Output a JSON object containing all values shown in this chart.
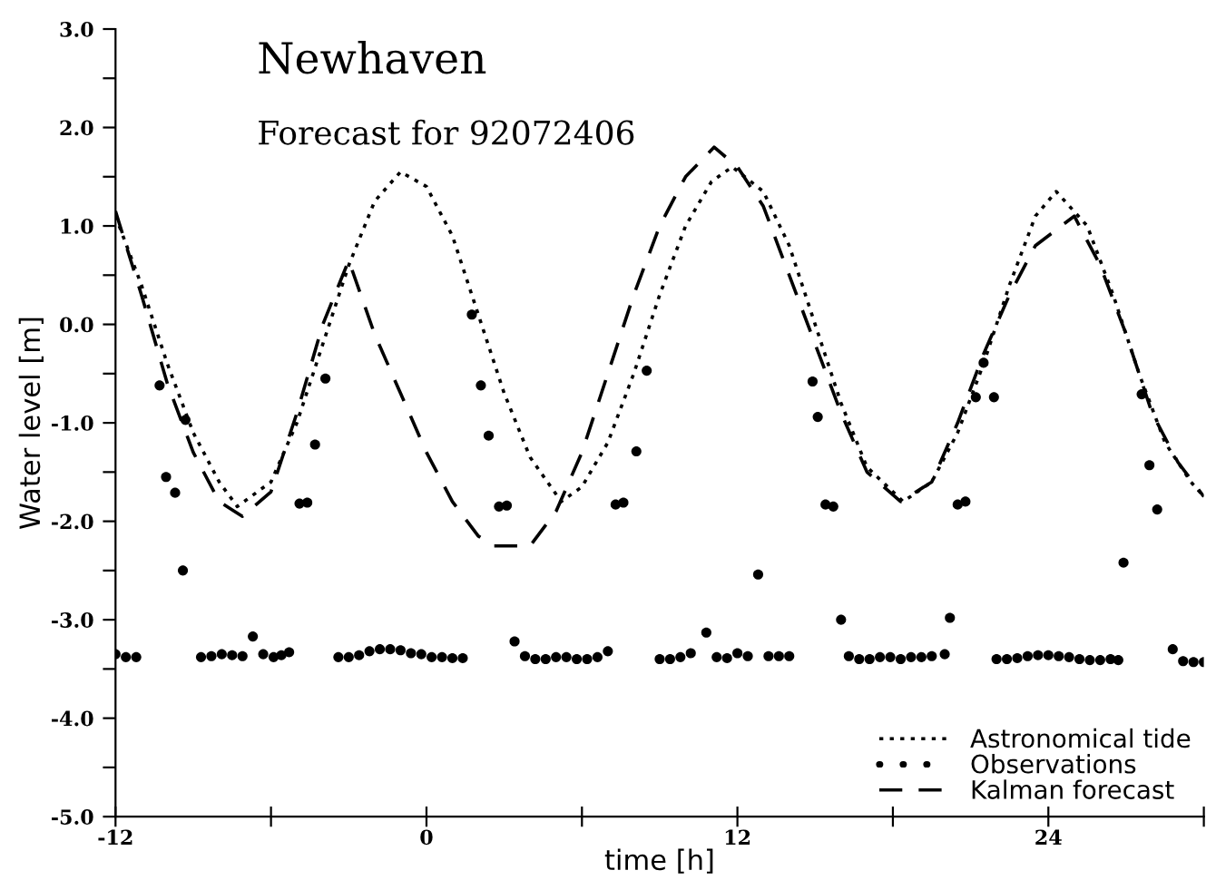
{
  "chart_data": {
    "type": "line",
    "title": "Newhaven",
    "subtitle": "Forecast for 92072406",
    "xlabel": "time [h]",
    "ylabel": "Water level [m]",
    "xlim": [
      -12,
      30
    ],
    "xticks": [
      -12,
      {
        "value": -6,
        "label": null
      },
      0,
      {
        "value": 6,
        "label": null
      },
      12,
      {
        "value": 18,
        "label": null
      },
      24,
      {
        "value": 30,
        "label": null
      }
    ],
    "ylim": [
      -5,
      3
    ],
    "yticks": [
      {
        "value": -5,
        "label": "-5.0"
      },
      {
        "value": -4.5,
        "label": null
      },
      {
        "value": -4,
        "label": "-4.0"
      },
      {
        "value": -3.5,
        "label": null
      },
      {
        "value": -3,
        "label": "-3.0"
      },
      {
        "value": -2.5,
        "label": null
      },
      {
        "value": -2,
        "label": "-2.0"
      },
      {
        "value": -1.5,
        "label": null
      },
      {
        "value": -1,
        "label": "-1.0"
      },
      {
        "value": -0.5,
        "label": null
      },
      {
        "value": 0,
        "label": "0.0"
      },
      {
        "value": 0.5,
        "label": null
      },
      {
        "value": 1,
        "label": "1.0"
      },
      {
        "value": 1.5,
        "label": null
      },
      {
        "value": 2,
        "label": "2.0"
      },
      {
        "value": 2.5,
        "label": null
      },
      {
        "value": 3,
        "label": "3.0"
      }
    ],
    "grid": false,
    "legend": "bottom right",
    "series": [
      {
        "name": "Astronomical tide",
        "line_style": "dotted",
        "color": "#000000",
        "x": [
          -12,
          -11,
          -10,
          -9,
          -8,
          -7.3,
          -6,
          -5,
          -4,
          -3,
          -2,
          -1,
          0,
          1,
          2,
          3,
          4,
          5.2,
          6,
          7,
          8,
          9,
          10,
          11,
          11.8,
          13,
          14,
          15,
          16,
          17,
          18.4,
          19.5,
          20.5,
          21.5,
          22.5,
          23.5,
          24.3,
          25.5,
          26.5,
          27.5,
          28.5,
          29.5,
          30
        ],
        "values": [
          1.1,
          0.4,
          -0.4,
          -1.1,
          -1.6,
          -1.85,
          -1.6,
          -1.0,
          -0.2,
          0.6,
          1.25,
          1.55,
          1.4,
          0.9,
          0.1,
          -0.7,
          -1.35,
          -1.8,
          -1.65,
          -1.2,
          -0.5,
          0.3,
          1.0,
          1.45,
          1.6,
          1.35,
          0.8,
          0.0,
          -0.8,
          -1.45,
          -1.8,
          -1.6,
          -1.1,
          -0.4,
          0.4,
          1.1,
          1.35,
          1.0,
          0.3,
          -0.5,
          -1.2,
          -1.6,
          -1.75
        ]
      },
      {
        "name": "Observations",
        "type": "scatter",
        "marker": "circle",
        "color": "#000000",
        "x": [
          -12,
          -11.6,
          -11.2,
          -10.3,
          -10.05,
          -9.7,
          -9.4,
          -9.3,
          -8.7,
          -8.3,
          -7.9,
          -7.5,
          -7.1,
          -6.7,
          -6.3,
          -5.9,
          -5.6,
          -5.3,
          -4.9,
          -4.6,
          -4.3,
          -3.9,
          -3.4,
          -3.0,
          -2.6,
          -2.2,
          -1.8,
          -1.4,
          -1.0,
          -0.6,
          -0.2,
          0.2,
          0.6,
          1.0,
          1.4,
          1.75,
          2.1,
          2.4,
          2.8,
          3.1,
          3.4,
          3.8,
          4.2,
          4.6,
          5.0,
          5.4,
          5.8,
          6.2,
          6.6,
          7.0,
          7.3,
          7.6,
          8.1,
          8.5,
          9.0,
          9.4,
          9.8,
          10.2,
          10.8,
          11.2,
          11.6,
          12.0,
          12.4,
          12.8,
          13.2,
          13.6,
          14.0,
          14.9,
          15.1,
          15.4,
          15.7,
          16.0,
          16.3,
          16.7,
          17.1,
          17.5,
          17.9,
          18.3,
          18.7,
          19.1,
          19.5,
          20.0,
          20.2,
          20.5,
          20.8,
          21.2,
          21.5,
          21.9,
          22.0,
          22.4,
          22.8,
          23.2,
          23.6,
          24.0,
          24.4,
          24.8,
          25.2,
          25.6,
          26.0,
          26.4,
          26.7,
          26.9,
          27.6,
          27.9,
          28.2,
          28.8,
          29.2,
          29.6,
          30.0
        ],
        "values": [
          -3.35,
          -3.38,
          -3.38,
          -0.62,
          -1.55,
          -1.71,
          -2.5,
          -0.97,
          -3.38,
          -3.37,
          -3.35,
          -3.36,
          -3.37,
          -3.17,
          -3.35,
          -3.38,
          -3.36,
          -3.33,
          -1.82,
          -1.81,
          -1.22,
          -0.55,
          -3.38,
          -3.38,
          -3.36,
          -3.32,
          -3.3,
          -3.3,
          -3.31,
          -3.34,
          -3.35,
          -3.38,
          -3.38,
          -3.39,
          -3.39,
          0.1,
          -0.62,
          -1.13,
          -1.85,
          -1.84,
          -3.22,
          -3.37,
          -3.4,
          -3.4,
          -3.38,
          -3.38,
          -3.4,
          -3.4,
          -3.38,
          -3.32,
          -1.83,
          -1.81,
          -1.29,
          -0.47,
          -3.4,
          -3.4,
          -3.38,
          -3.34,
          -3.13,
          -3.38,
          -3.39,
          -3.34,
          -3.37,
          -2.54,
          -3.37,
          -3.37,
          -3.37,
          -0.58,
          -0.94,
          -1.83,
          -1.85,
          -3.0,
          -3.37,
          -3.4,
          -3.4,
          -3.38,
          -3.38,
          -3.4,
          -3.38,
          -3.38,
          -3.37,
          -3.35,
          -2.98,
          -1.83,
          -1.8,
          -0.74,
          -0.39,
          -0.74,
          -3.4,
          -3.4,
          -3.39,
          -3.37,
          -3.36,
          -3.36,
          -3.37,
          -3.38,
          -3.4,
          -3.41,
          -3.41,
          -3.4,
          -3.41,
          -2.42,
          -0.71,
          -1.43,
          -1.88,
          -3.3,
          -3.42,
          -3.43,
          -3.43
        ]
      },
      {
        "name": "Kalman forecast",
        "line_style": "dashed",
        "color": "#000000",
        "x": [
          -12,
          -11,
          -10,
          -9,
          -8,
          -7.1,
          -6,
          -5,
          -4,
          -3,
          -2,
          -1,
          0,
          1,
          2,
          2.6,
          4,
          5,
          6,
          7,
          8,
          9,
          10,
          11.1,
          12,
          13,
          14,
          15,
          16,
          17,
          18.3,
          19.5,
          20.5,
          21.5,
          22.5,
          23.5,
          25,
          26,
          27,
          28,
          29,
          30
        ],
        "values": [
          1.15,
          0.3,
          -0.6,
          -1.3,
          -1.8,
          -1.95,
          -1.7,
          -0.9,
          0.0,
          0.65,
          -0.1,
          -0.7,
          -1.3,
          -1.8,
          -2.15,
          -2.25,
          -2.25,
          -1.9,
          -1.3,
          -0.5,
          0.3,
          1.0,
          1.5,
          1.8,
          1.6,
          1.2,
          0.5,
          -0.2,
          -0.9,
          -1.5,
          -1.8,
          -1.6,
          -1.0,
          -0.3,
          0.3,
          0.8,
          1.1,
          0.6,
          -0.1,
          -0.9,
          -1.4,
          -1.75
        ]
      }
    ]
  }
}
